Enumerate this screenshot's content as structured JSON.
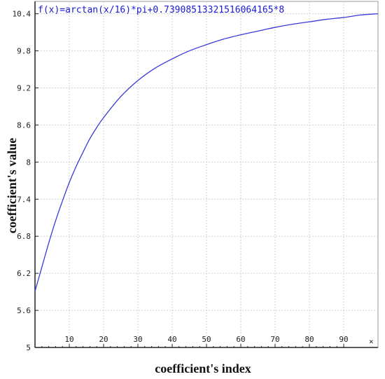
{
  "chart_data": {
    "type": "line",
    "formula": "f(x)=arctan(x/16)*pi+0.73908513321516064165*8",
    "xlabel": "coefficient's index",
    "ylabel": "coefficient's value",
    "x_axis_marker": "×",
    "xlim": [
      0,
      100
    ],
    "ylim": [
      5,
      10.6
    ],
    "x_ticks": [
      10,
      20,
      30,
      40,
      50,
      60,
      70,
      80,
      90
    ],
    "y_ticks": [
      5,
      5.6,
      6.2,
      6.8,
      7.4,
      8,
      8.6,
      9.2,
      9.8,
      10.4
    ],
    "y_tick_labels": [
      "5",
      "5.6",
      "6.2",
      "6.8",
      "7.4",
      "8",
      "8.6",
      "9.2",
      "9.8",
      "10.4"
    ],
    "grid": true,
    "series": [
      {
        "color": "#3a3ad8",
        "x": [
          0,
          2,
          4,
          6,
          8,
          10,
          12,
          14,
          16,
          18,
          20,
          25,
          30,
          35,
          40,
          45,
          50,
          55,
          60,
          65,
          70,
          75,
          80,
          85,
          90,
          95,
          100
        ],
        "y": [
          5.91,
          6.3,
          6.69,
          7.05,
          7.37,
          7.67,
          7.93,
          8.16,
          8.38,
          8.56,
          8.72,
          9.06,
          9.32,
          9.52,
          9.67,
          9.8,
          9.9,
          9.99,
          10.06,
          10.12,
          10.18,
          10.23,
          10.27,
          10.31,
          10.34,
          10.38,
          10.4
        ]
      }
    ],
    "formula_color": "#1a1ad0",
    "axis_color": "#222222",
    "grid_color": "#d0d0d0"
  }
}
